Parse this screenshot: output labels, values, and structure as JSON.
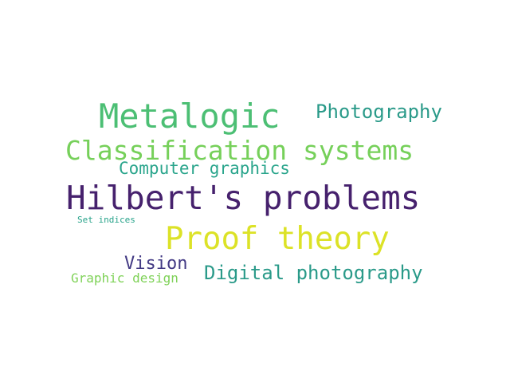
{
  "words": [
    {
      "key": "metalogic",
      "text": "Metalogic",
      "color": "#4cbf74"
    },
    {
      "key": "photography",
      "text": "Photography",
      "color": "#2a9a89"
    },
    {
      "key": "classif",
      "text": "Classification systems",
      "color": "#76d05a"
    },
    {
      "key": "compgfx",
      "text": "Computer graphics",
      "color": "#2aa58c"
    },
    {
      "key": "hilbert",
      "text": "Hilbert's problems",
      "color": "#46216d"
    },
    {
      "key": "setind",
      "text": "Set indices",
      "color": "#27a38a"
    },
    {
      "key": "proof",
      "text": "Proof theory",
      "color": "#dce227"
    },
    {
      "key": "vision",
      "text": "Vision",
      "color": "#433a84"
    },
    {
      "key": "graphic",
      "text": "Graphic design",
      "color": "#7fd258"
    },
    {
      "key": "digital",
      "text": "Digital photography",
      "color": "#2a9a89"
    }
  ]
}
